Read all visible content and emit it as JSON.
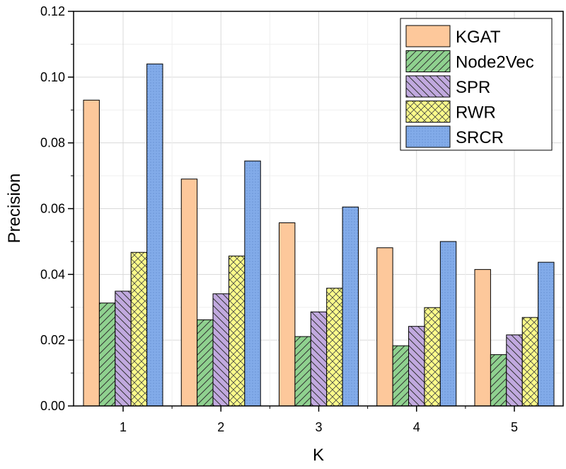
{
  "chart_data": {
    "type": "bar",
    "title": "",
    "xlabel": "K",
    "ylabel": "Precision",
    "categories": [
      "1",
      "2",
      "3",
      "4",
      "5"
    ],
    "ylim": [
      0,
      0.12
    ],
    "yticks": [
      "0.00",
      "0.02",
      "0.04",
      "0.06",
      "0.08",
      "0.10",
      "0.12"
    ],
    "grid": true,
    "legend_position": "top-right",
    "series": [
      {
        "name": "KGAT",
        "color": "#fdc89b",
        "pattern": "solid",
        "values": [
          0.093,
          0.069,
          0.0557,
          0.0481,
          0.0415
        ]
      },
      {
        "name": "Node2Vec",
        "color": "#8fd18f",
        "pattern": "diag-up",
        "values": [
          0.0313,
          0.0262,
          0.0211,
          0.0183,
          0.0156
        ]
      },
      {
        "name": "SPR",
        "color": "#c1a9df",
        "pattern": "diag-down",
        "values": [
          0.0349,
          0.0341,
          0.0286,
          0.0242,
          0.0216
        ]
      },
      {
        "name": "RWR",
        "color": "#fdfd8a",
        "pattern": "cross",
        "values": [
          0.0467,
          0.0456,
          0.0358,
          0.0299,
          0.0269
        ]
      },
      {
        "name": "SRCR",
        "color": "#82abe9",
        "pattern": "dots",
        "values": [
          0.104,
          0.0745,
          0.0605,
          0.05,
          0.0437
        ]
      }
    ]
  }
}
